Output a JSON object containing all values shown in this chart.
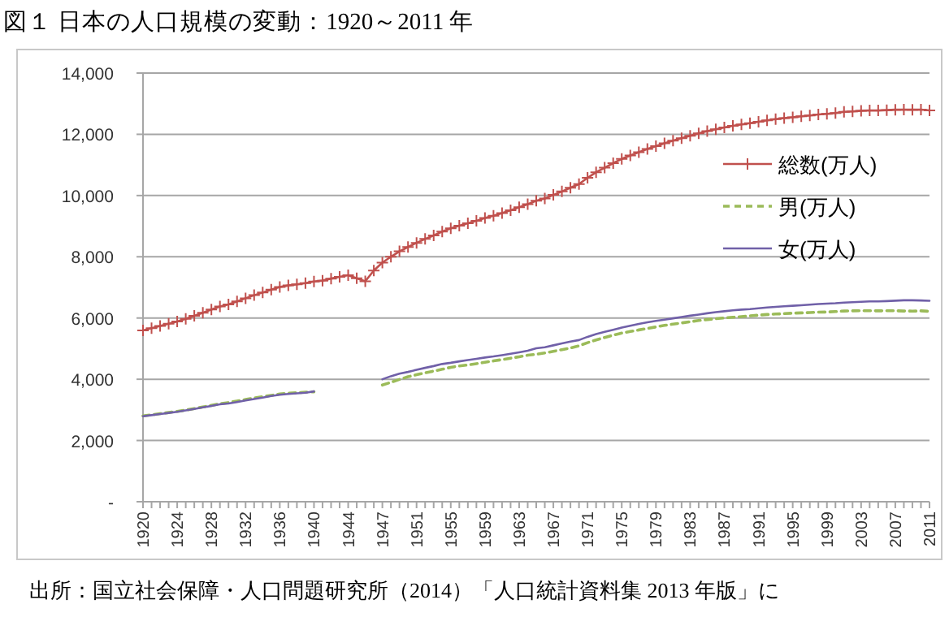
{
  "chart_data": {
    "type": "line",
    "title": "図１ 日本の人口規模の変動：1920～2011 年",
    "annotations": [
      "出所：国立社会保障・人口問題研究所（2014）「人口統計資料集 2013 年版」に"
    ],
    "categories": [
      "1920",
      null,
      null,
      null,
      "1924",
      null,
      null,
      null,
      "1928",
      null,
      null,
      null,
      "1932",
      null,
      null,
      null,
      "1936",
      null,
      null,
      null,
      "1940",
      null,
      null,
      null,
      "1944",
      null,
      null,
      null,
      "1947",
      null,
      null,
      null,
      "1951",
      null,
      null,
      null,
      "1955",
      null,
      null,
      null,
      "1959",
      null,
      null,
      null,
      "1963",
      null,
      null,
      null,
      "1967",
      null,
      null,
      null,
      "1971",
      null,
      null,
      null,
      "1975",
      null,
      null,
      null,
      "1979",
      null,
      null,
      null,
      "1983",
      null,
      null,
      null,
      "1987",
      null,
      null,
      null,
      "1991",
      null,
      null,
      null,
      "1995",
      null,
      null,
      null,
      "1999",
      null,
      null,
      null,
      "2003",
      null,
      null,
      null,
      "2007",
      null,
      null,
      null,
      "2011"
    ],
    "ylim": [
      0,
      14000
    ],
    "yticks": [
      {
        "value": 0,
        "label": "-"
      },
      {
        "value": 2000,
        "label": "2,000"
      },
      {
        "value": 4000,
        "label": "4,000"
      },
      {
        "value": 6000,
        "label": "6,000"
      },
      {
        "value": 8000,
        "label": "8,000"
      },
      {
        "value": 10000,
        "label": "10,000"
      },
      {
        "value": 12000,
        "label": "12,000"
      },
      {
        "value": 14000,
        "label": "14,000"
      }
    ],
    "grid": "y",
    "legend": "right",
    "series": [
      {
        "name": "総数(万人)",
        "color": "#c0504d",
        "marker": "cross",
        "line_style": "solid",
        "values": [
          5596,
          5667,
          5739,
          5812,
          5888,
          5974,
          6074,
          6174,
          6276,
          6379,
          6445,
          6545,
          6645,
          6745,
          6831,
          6925,
          7011,
          7063,
          7101,
          7138,
          7193,
          7222,
          7288,
          7343,
          7400,
          7300,
          7200,
          7550,
          7810,
          8000,
          8177,
          8320,
          8454,
          8581,
          8698,
          8824,
          8928,
          9017,
          9093,
          9177,
          9264,
          9342,
          9429,
          9518,
          9616,
          9718,
          9828,
          9904,
          10020,
          10133,
          10254,
          10372,
          10578,
          10760,
          10910,
          11057,
          11194,
          11309,
          11417,
          11519,
          11616,
          11706,
          11790,
          11873,
          11954,
          12031,
          12105,
          12166,
          12224,
          12275,
          12321,
          12361,
          12410,
          12457,
          12494,
          12527,
          12557,
          12586,
          12616,
          12647,
          12667,
          12693,
          12732,
          12749,
          12769,
          12779,
          12777,
          12790,
          12803,
          12808,
          12803,
          12806,
          12780
        ]
      },
      {
        "name": "男(万人)",
        "color": "#9bbb59",
        "marker": "none",
        "line_style": "dashed",
        "values": [
          2804,
          2840,
          2876,
          2913,
          2951,
          2992,
          3043,
          3094,
          3146,
          3198,
          3239,
          3289,
          3339,
          3390,
          3433,
          3473,
          3518,
          3543,
          3560,
          3578,
          3590,
          null,
          null,
          null,
          null,
          null,
          null,
          null,
          3810,
          3900,
          3994,
          4081,
          4147,
          4209,
          4267,
          4326,
          4390,
          4433,
          4468,
          4509,
          4554,
          4598,
          4642,
          4687,
          4735,
          4784,
          4819,
          4859,
          4912,
          4965,
          5022,
          5092,
          5193,
          5284,
          5364,
          5441,
          5509,
          5561,
          5611,
          5661,
          5708,
          5759,
          5800,
          5839,
          5879,
          5918,
          5950,
          5976,
          6002,
          6024,
          6046,
          6070,
          6094,
          6114,
          6130,
          6143,
          6157,
          6168,
          6178,
          6192,
          6196,
          6211,
          6229,
          6235,
          6239,
          6237,
          6235,
          6237,
          6236,
          6229,
          6225,
          6233,
          6218
        ]
      },
      {
        "name": "女(万人)",
        "color": "#7060a8",
        "marker": "none",
        "line_style": "solid",
        "values": [
          2792,
          2827,
          2863,
          2899,
          2937,
          2982,
          3031,
          3080,
          3130,
          3181,
          3206,
          3256,
          3306,
          3355,
          3398,
          3452,
          3493,
          3520,
          3541,
          3560,
          3603,
          null,
          null,
          null,
          null,
          null,
          null,
          null,
          4000,
          4100,
          4183,
          4239,
          4307,
          4372,
          4431,
          4498,
          4538,
          4584,
          4625,
          4668,
          4710,
          4744,
          4787,
          4831,
          4881,
          4934,
          5009,
          5045,
          5108,
          5168,
          5232,
          5280,
          5385,
          5476,
          5546,
          5616,
          5685,
          5748,
          5806,
          5858,
          5908,
          5947,
          5990,
          6034,
          6075,
          6113,
          6155,
          6190,
          6222,
          6251,
          6275,
          6291,
          6316,
          6343,
          6364,
          6384,
          6400,
          6418,
          6438,
          6455,
          6471,
          6482,
          6503,
          6514,
          6530,
          6542,
          6541,
          6553,
          6567,
          6579,
          6578,
          6573,
          6562
        ]
      }
    ]
  }
}
